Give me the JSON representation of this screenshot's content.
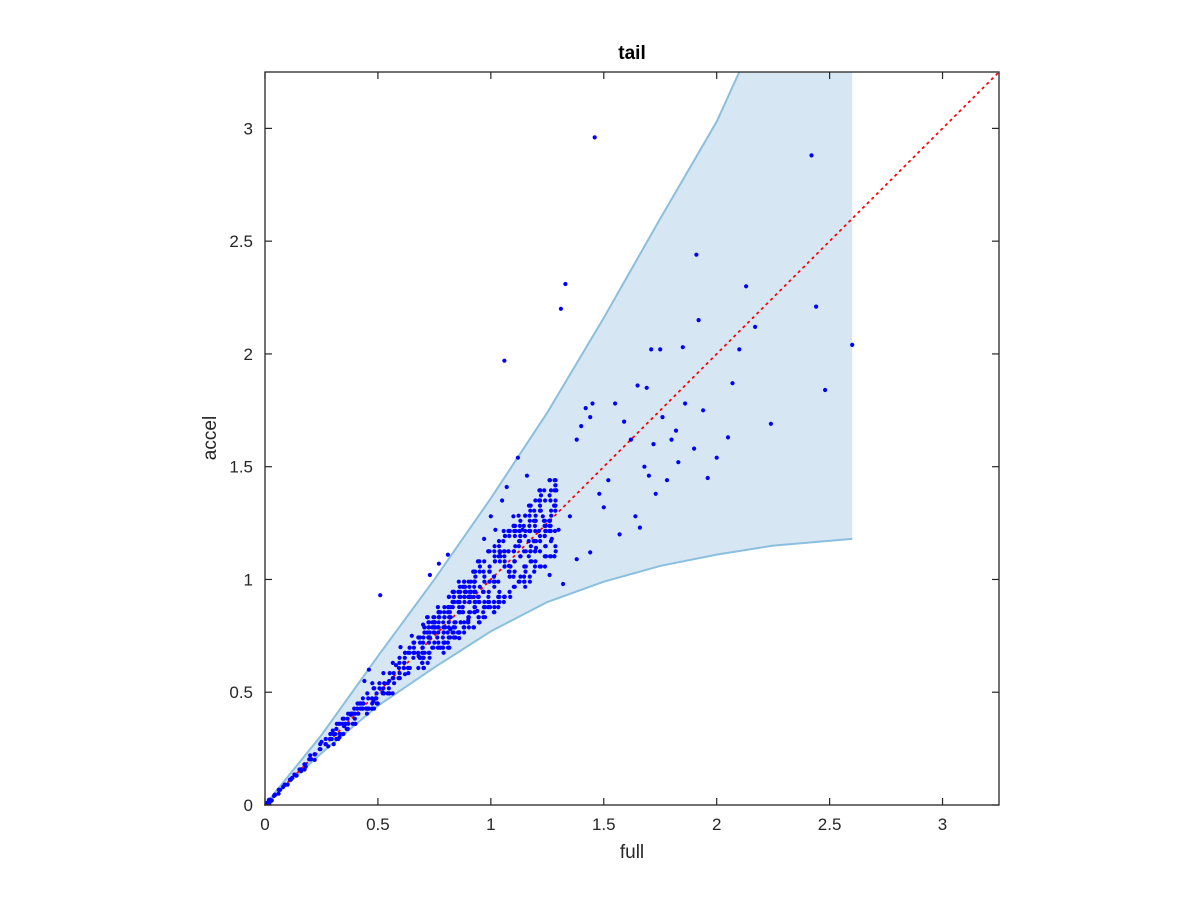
{
  "chart_data": {
    "type": "scatter",
    "title": "tail",
    "xlabel": "full",
    "ylabel": "accel",
    "xlim": [
      0,
      3.25
    ],
    "ylim": [
      0,
      3.25
    ],
    "xticks": [
      0,
      0.5,
      1,
      1.5,
      2,
      2.5,
      3
    ],
    "xtick_labels": [
      "0",
      "0.5",
      "1",
      "1.5",
      "2",
      "2.5",
      "3"
    ],
    "yticks": [
      0,
      0.5,
      1,
      1.5,
      2,
      2.5,
      3
    ],
    "ytick_labels": [
      "0",
      "0.5",
      "1",
      "1.5",
      "2",
      "2.5",
      "3"
    ],
    "grid": false,
    "colors": {
      "points": "#0000ff",
      "band_fill": "#d6e7f3",
      "band_edge": "#8abfde",
      "reference_line": "#ff0000",
      "axes": "#262626"
    },
    "band": {
      "upper": [
        [
          0,
          0
        ],
        [
          0.25,
          0.31
        ],
        [
          0.5,
          0.66
        ],
        [
          0.75,
          1.0
        ],
        [
          1.0,
          1.36
        ],
        [
          1.25,
          1.74
        ],
        [
          1.5,
          2.16
        ],
        [
          1.75,
          2.6
        ],
        [
          2.0,
          3.03
        ],
        [
          2.1,
          3.25
        ],
        [
          2.6,
          3.25
        ]
      ],
      "lower": [
        [
          0,
          0
        ],
        [
          0.25,
          0.23
        ],
        [
          0.5,
          0.44
        ],
        [
          0.75,
          0.61
        ],
        [
          1.0,
          0.77
        ],
        [
          1.25,
          0.9
        ],
        [
          1.5,
          0.99
        ],
        [
          1.75,
          1.06
        ],
        [
          2.0,
          1.11
        ],
        [
          2.25,
          1.15
        ],
        [
          2.6,
          1.18
        ]
      ]
    },
    "reference_line": {
      "style": "dotted",
      "from": [
        0,
        0
      ],
      "to": [
        3.25,
        3.25
      ]
    },
    "series": [
      {
        "points": [
          [
            1.46,
            2.96
          ],
          [
            2.42,
            2.88
          ],
          [
            1.33,
            2.31
          ],
          [
            1.31,
            2.2
          ],
          [
            1.06,
            1.97
          ],
          [
            1.91,
            2.44
          ],
          [
            2.13,
            2.3
          ],
          [
            2.44,
            2.21
          ],
          [
            1.92,
            2.15
          ],
          [
            2.6,
            2.04
          ],
          [
            2.48,
            1.84
          ],
          [
            2.24,
            1.69
          ],
          [
            1.96,
            1.45
          ],
          [
            2.0,
            1.54
          ],
          [
            1.85,
            2.03
          ],
          [
            2.17,
            2.12
          ],
          [
            2.1,
            2.02
          ],
          [
            2.07,
            1.87
          ],
          [
            1.75,
            2.02
          ],
          [
            1.71,
            2.02
          ],
          [
            1.65,
            1.86
          ],
          [
            1.69,
            1.85
          ],
          [
            1.59,
            1.7
          ],
          [
            1.62,
            1.62
          ],
          [
            1.55,
            1.78
          ],
          [
            1.45,
            1.78
          ],
          [
            1.42,
            1.76
          ],
          [
            1.4,
            1.68
          ],
          [
            1.38,
            1.62
          ],
          [
            1.44,
            1.72
          ],
          [
            1.12,
            1.54
          ],
          [
            1.16,
            1.46
          ],
          [
            1.07,
            1.41
          ],
          [
            1.05,
            1.35
          ],
          [
            1.66,
            1.23
          ],
          [
            1.73,
            1.38
          ],
          [
            1.78,
            1.44
          ],
          [
            1.83,
            1.52
          ],
          [
            1.9,
            1.58
          ],
          [
            1.8,
            1.62
          ],
          [
            1.76,
            1.72
          ],
          [
            1.86,
            1.78
          ],
          [
            1.72,
            1.6
          ],
          [
            1.68,
            1.5
          ],
          [
            1.52,
            1.44
          ],
          [
            1.48,
            1.38
          ],
          [
            1.35,
            1.28
          ],
          [
            1.3,
            1.22
          ],
          [
            1.27,
            1.18
          ],
          [
            1.23,
            1.28
          ],
          [
            1.2,
            1.14
          ],
          [
            1.14,
            1.22
          ],
          [
            1.1,
            1.28
          ],
          [
            1.02,
            1.22
          ],
          [
            1.0,
            1.28
          ],
          [
            0.97,
            1.18
          ],
          [
            1.04,
            1.12
          ],
          [
            1.08,
            1.06
          ],
          [
            1.18,
            1.08
          ],
          [
            1.26,
            1.02
          ],
          [
            1.32,
            0.98
          ],
          [
            1.38,
            1.09
          ],
          [
            1.44,
            1.12
          ],
          [
            1.5,
            1.32
          ],
          [
            1.57,
            1.2
          ],
          [
            1.64,
            1.28
          ],
          [
            1.7,
            1.46
          ],
          [
            1.82,
            1.66
          ],
          [
            1.94,
            1.75
          ],
          [
            2.05,
            1.63
          ],
          [
            0.81,
            1.11
          ],
          [
            0.77,
            1.07
          ],
          [
            0.73,
            1.02
          ],
          [
            0.51,
            0.93
          ],
          [
            0.46,
            0.6
          ],
          [
            0.44,
            0.55
          ],
          [
            0.48,
            0.46
          ],
          [
            0.55,
            0.55
          ],
          [
            0.62,
            0.58
          ],
          [
            0.68,
            0.66
          ],
          [
            0.75,
            0.72
          ],
          [
            0.82,
            0.78
          ],
          [
            0.86,
            0.74
          ],
          [
            0.9,
            0.82
          ],
          [
            0.94,
            0.86
          ],
          [
            0.6,
            0.7
          ],
          [
            0.65,
            0.75
          ],
          [
            0.7,
            0.8
          ],
          [
            0.58,
            0.62
          ],
          [
            0.52,
            0.5
          ],
          [
            0.35,
            0.35
          ],
          [
            0.38,
            0.4
          ],
          [
            0.4,
            0.36
          ],
          [
            0.33,
            0.3
          ],
          [
            0.3,
            0.33
          ],
          [
            0.28,
            0.26
          ],
          [
            0.25,
            0.28
          ],
          [
            0.22,
            0.2
          ],
          [
            0.2,
            0.22
          ],
          [
            0.18,
            0.17
          ],
          [
            0.16,
            0.15
          ],
          [
            0.14,
            0.13
          ],
          [
            0.12,
            0.12
          ],
          [
            0.1,
            0.09
          ],
          [
            0.08,
            0.08
          ],
          [
            0.06,
            0.05
          ],
          [
            0.04,
            0.04
          ],
          [
            0.03,
            0.02
          ],
          [
            0.02,
            0.01
          ],
          [
            0.01,
            0.01
          ]
        ]
      }
    ],
    "dense_clusters": [
      {
        "x_from": 0.02,
        "x_to": 0.5,
        "spread": 0.16
      },
      {
        "x_from": 0.3,
        "x_to": 0.95,
        "spread": 0.24
      },
      {
        "x_from": 0.7,
        "x_to": 1.3,
        "spread": 0.3
      }
    ]
  }
}
